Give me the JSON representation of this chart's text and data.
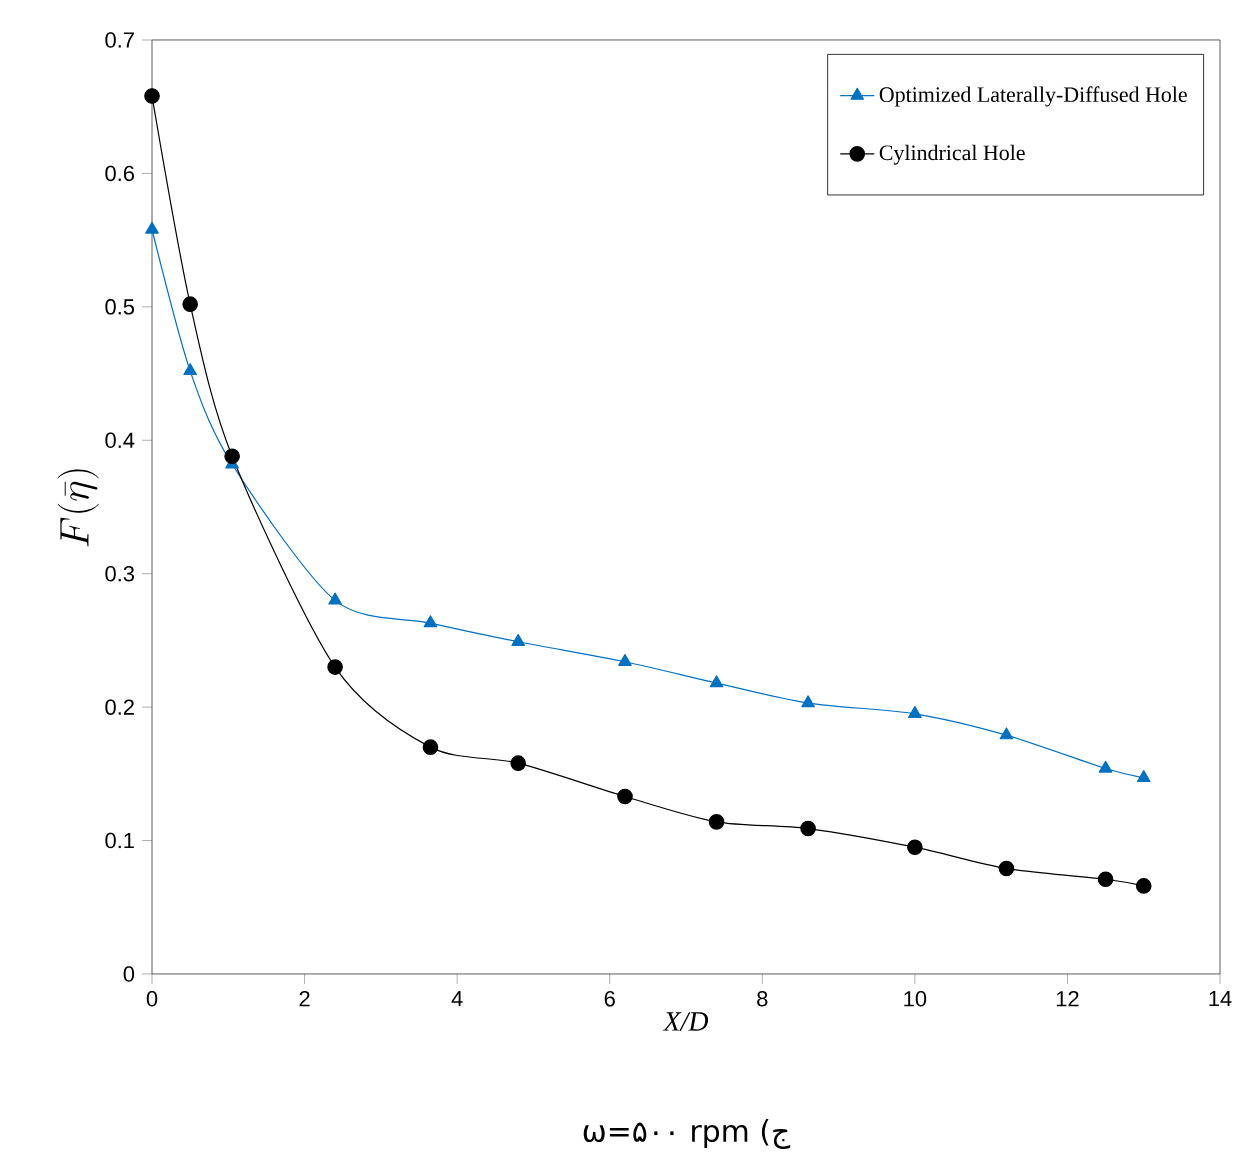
{
  "chart_data": {
    "type": "line",
    "xlabel": "X/D",
    "ylabel": "F(\\bar{\\eta})",
    "annotations": [
      "ω=۵۰۰ rpm (ج"
    ],
    "xlim": [
      0,
      14
    ],
    "xticks": [
      0,
      2,
      4,
      6,
      8,
      10,
      12,
      14
    ],
    "ylim": [
      0,
      0.7
    ],
    "yticks": [
      0,
      0.1,
      0.2,
      0.3,
      0.4,
      0.5,
      0.6,
      0.7
    ],
    "x": [
      0,
      0.5,
      1.05,
      2.4,
      3.65,
      4.8,
      6.2,
      7.4,
      8.6,
      10,
      11.2,
      12.5,
      13
    ],
    "legend": "top right",
    "grid": false,
    "series": [
      {
        "name": "Optimized Laterally-Diffused Hole",
        "color": "#0070c0",
        "marker": "triangle",
        "values": [
          0.558,
          0.452,
          0.382,
          0.28,
          0.263,
          0.249,
          0.234,
          0.218,
          0.203,
          0.195,
          0.179,
          0.154,
          0.147
        ]
      },
      {
        "name": "Cylindrical Hole",
        "color": "#000000",
        "marker": "circle",
        "values": [
          0.658,
          0.502,
          0.388,
          0.23,
          0.17,
          0.158,
          0.133,
          0.114,
          0.109,
          0.095,
          0.079,
          0.071,
          0.066
        ]
      }
    ]
  }
}
